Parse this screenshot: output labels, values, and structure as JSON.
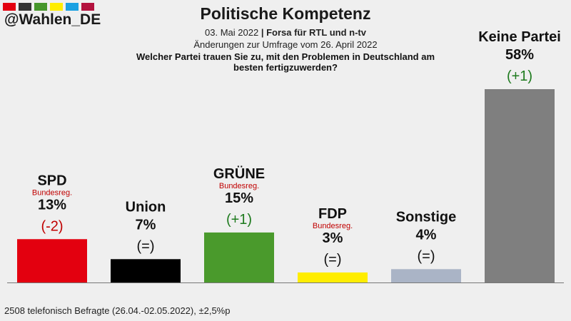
{
  "header": {
    "brand": "@Wahlen_DE",
    "swatches": [
      "#e3000f",
      "#333333",
      "#46962b",
      "#ffed00",
      "#1ba1e2",
      "#b3123e"
    ],
    "title": "Politische Kompetenz",
    "date": "03. Mai 2022",
    "separator": "|",
    "source": "Forsa für RTL und n-tv",
    "changes_note": "Änderungen zur Umfrage vom 26. April 2022",
    "question": "Welcher Partei trauen Sie zu, mit den Problemen in Deutschland am besten fertigzuwerden?"
  },
  "chart_data": {
    "type": "bar",
    "categories": [
      "SPD",
      "Union",
      "GRÜNE",
      "FDP",
      "Sonstige",
      "Keine Partei"
    ],
    "values": [
      13,
      7,
      15,
      3,
      4,
      58
    ],
    "value_labels": [
      "13%",
      "7%",
      "15%",
      "3%",
      "4%",
      "58%"
    ],
    "changes": [
      "(-2)",
      "(=)",
      "(+1)",
      "(=)",
      "(=)",
      "(+1)"
    ],
    "change_colors": [
      "#c00000",
      "#111111",
      "#1e7a1e",
      "#111111",
      "#111111",
      "#1e7a1e"
    ],
    "government_tags": [
      "Bundesreg.",
      "",
      "Bundesreg.",
      "Bundesreg.",
      "",
      ""
    ],
    "colors": [
      "#e3000f",
      "#000000",
      "#4a9a2c",
      "#ffed00",
      "#aab4c6",
      "#7f7f7f"
    ],
    "ylim": [
      0,
      58
    ],
    "grid": false,
    "legend": "none"
  },
  "footer": {
    "note": "2508 telefonisch Befragte (26.04.-02.05.2022), ±2,5%p"
  }
}
